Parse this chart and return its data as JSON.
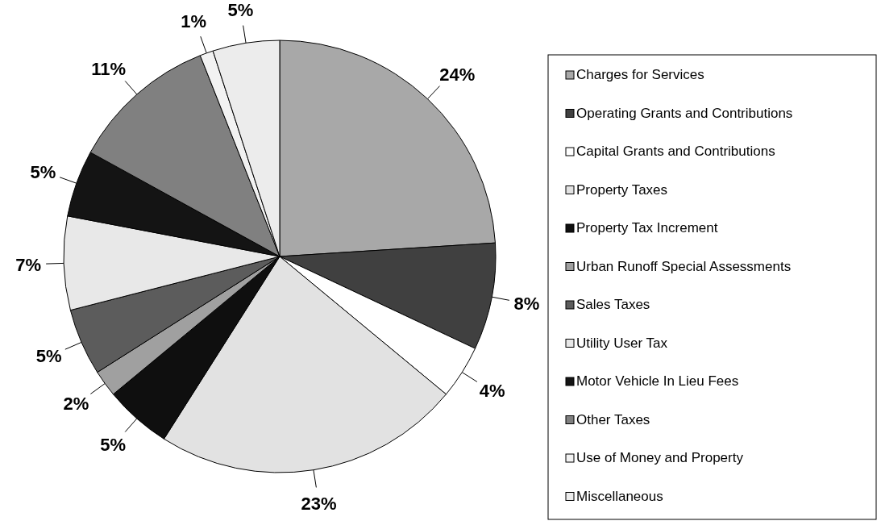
{
  "chart_data": {
    "type": "pie",
    "categories": [
      "Charges for Services",
      "Operating Grants and Contributions",
      "Capital Grants and Contributions",
      "Property Taxes",
      "Property Tax Increment",
      "Urban Runoff Special Assessments",
      "Sales Taxes",
      "Utility User Tax",
      "Motor Vehicle In Lieu Fees",
      "Other Taxes",
      "Use of Money and Property",
      "Miscellaneous"
    ],
    "values": [
      24,
      8,
      4,
      23,
      5,
      2,
      5,
      7,
      5,
      11,
      1,
      5
    ],
    "value_labels": [
      "24%",
      "8%",
      "4%",
      "23%",
      "5%",
      "2%",
      "5%",
      "7%",
      "5%",
      "11%",
      "1%",
      "5%"
    ],
    "colors": [
      "#a8a8a8",
      "#404040",
      "#ffffff",
      "#e2e2e2",
      "#0f0f0f",
      "#a0a0a0",
      "#5c5c5c",
      "#e8e8e8",
      "#141414",
      "#808080",
      "#f2f2f2",
      "#ececec"
    ],
    "legend": "right"
  }
}
